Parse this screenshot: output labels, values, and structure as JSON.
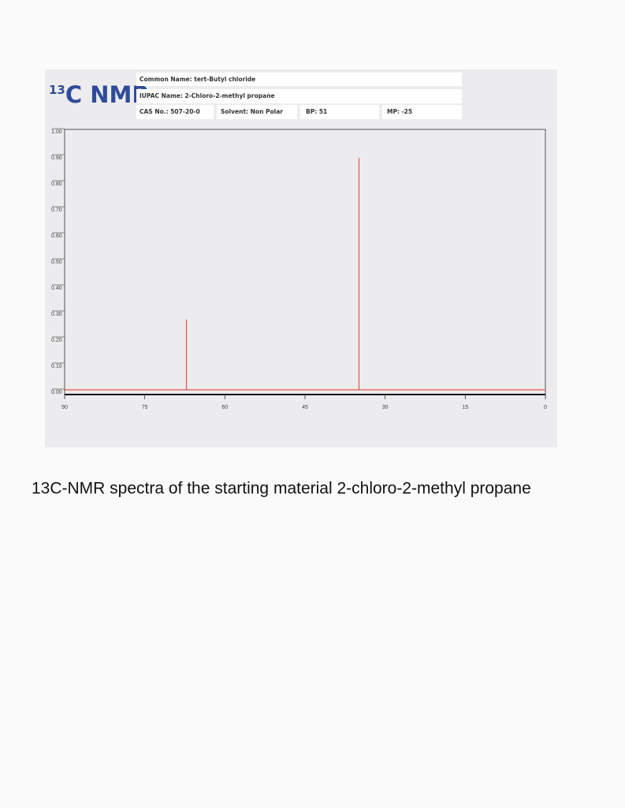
{
  "header": {
    "logo_super": "13",
    "logo": "C NMR",
    "common_name": "Common Name: tert-Butyl chloride",
    "iupac_name": "IUPAC Name: 2-Chloro-2-methyl propane",
    "cas": "CAS No.: 507-20-0",
    "solvent": "Solvent: Non Polar",
    "bp": "BP: 51",
    "mp": "MP: -25"
  },
  "chart_data": {
    "type": "stem",
    "x": [
      67.2,
      34.9
    ],
    "values": [
      0.27,
      0.89
    ],
    "color": "#e8514a",
    "xlim": [
      90,
      0
    ],
    "xticks": [
      90,
      75,
      60,
      45,
      30,
      15,
      0
    ],
    "ylim": [
      0,
      1
    ],
    "yticks": [
      {
        "value": 0,
        "label": "0.00"
      },
      {
        "value": 0.1,
        "label": "0.10"
      },
      {
        "value": 0.2,
        "label": "0.20"
      },
      {
        "value": 0.3,
        "label": "0.30"
      },
      {
        "value": 0.4,
        "label": "0.40"
      },
      {
        "value": 0.5,
        "label": "0.50"
      },
      {
        "value": 0.6,
        "label": "0.60"
      },
      {
        "value": 0.7,
        "label": "0.70"
      },
      {
        "value": 0.8,
        "label": "0.80"
      },
      {
        "value": 0.9,
        "label": "0.90"
      },
      {
        "value": 1,
        "label": "1.00"
      }
    ]
  },
  "caption": "13C-NMR spectra of the starting material 2-chloro-2-methyl propane"
}
